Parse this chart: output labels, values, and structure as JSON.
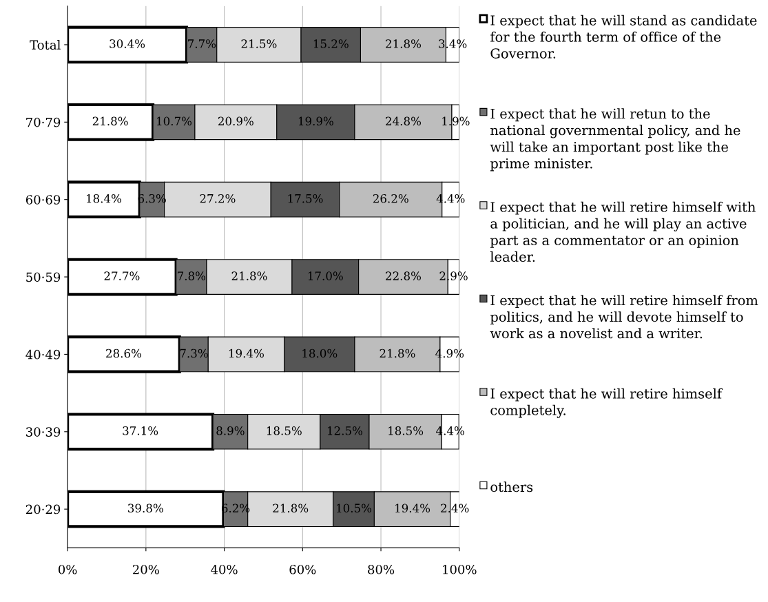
{
  "chart_data": {
    "type": "bar",
    "orientation": "horizontal",
    "stacked": true,
    "categories": [
      "Total",
      "70·79",
      "60·69",
      "50·59",
      "40·49",
      "30·39",
      "20·29"
    ],
    "series": [
      {
        "name": "I expect that he will stand as candidate for the fourth term of office of the Governor.",
        "color": "#ffffff",
        "values": [
          30.4,
          21.8,
          18.4,
          27.7,
          28.6,
          37.1,
          39.8
        ],
        "value_labels": [
          "30.4%",
          "21.8%",
          "18.4%",
          "27.7%",
          "28.6%",
          "37.1%",
          "39.8%"
        ]
      },
      {
        "name": "I expect that he will retun to the national governmental policy, and he will take an important post like the prime minister.",
        "color": "#707070",
        "values": [
          7.7,
          10.7,
          6.3,
          7.8,
          7.3,
          8.9,
          6.2
        ],
        "value_labels": [
          "7.7%",
          "10.7%",
          "6.3%",
          "7.8%",
          "7.3%",
          "8.9%",
          "6.2%"
        ]
      },
      {
        "name": "I expect that he will retire himself with a politician, and he will play an active part as a commentator or an opinion leader.",
        "color": "#dadada",
        "values": [
          21.5,
          20.9,
          27.2,
          21.8,
          19.4,
          18.5,
          21.8
        ],
        "value_labels": [
          "21.5%",
          "20.9%",
          "27.2%",
          "21.8%",
          "19.4%",
          "18.5%",
          "21.8%"
        ]
      },
      {
        "name": "I expect that he will retire himself from politics, and he will devote himself to work as a novelist and a writer.",
        "color": "#555555",
        "values": [
          15.2,
          19.9,
          17.5,
          17.0,
          18.0,
          12.5,
          10.5
        ],
        "value_labels": [
          "15.2%",
          "19.9%",
          "17.5%",
          "17.0%",
          "18.0%",
          "12.5%",
          "10.5%"
        ]
      },
      {
        "name": "I expect that he will retire himself completely.",
        "color": "#bdbdbd",
        "values": [
          21.8,
          24.8,
          26.2,
          22.8,
          21.8,
          18.5,
          19.4
        ],
        "value_labels": [
          "21.8%",
          "24.8%",
          "26.2%",
          "22.8%",
          "21.8%",
          "18.5%",
          "19.4%"
        ]
      },
      {
        "name": "others",
        "color": "#ffffff",
        "values": [
          3.4,
          1.9,
          4.4,
          2.9,
          4.9,
          4.4,
          2.4
        ],
        "value_labels": [
          "3.4%",
          "1.9%",
          "4.4%",
          "2.9%",
          "4.9%",
          "4.4%",
          "2.4%"
        ]
      }
    ],
    "xlim": [
      0,
      100
    ],
    "xticks": [
      {
        "value": 0,
        "label": "0%"
      },
      {
        "value": 20,
        "label": "20%"
      },
      {
        "value": 40,
        "label": "40%"
      },
      {
        "value": 60,
        "label": "60%"
      },
      {
        "value": 80,
        "label": "80%"
      },
      {
        "value": 100,
        "label": "100%"
      }
    ],
    "grid": "x",
    "legend": "right"
  }
}
